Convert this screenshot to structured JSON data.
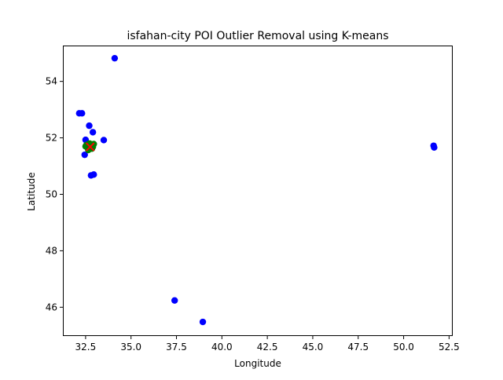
{
  "chart_data": {
    "type": "scatter",
    "title": "isfahan-city POI Outlier Removal using K-means",
    "xlabel": "Longitude",
    "ylabel": "Latitude",
    "xlim": [
      31.25,
      52.7
    ],
    "ylim": [
      44.98,
      55.27
    ],
    "x_ticks": [
      "32.5",
      "35.0",
      "37.5",
      "40.0",
      "42.5",
      "45.0",
      "47.5",
      "50.0",
      "52.5"
    ],
    "y_ticks": [
      "46",
      "48",
      "50",
      "52",
      "54"
    ],
    "grid": false,
    "colors": {
      "blue": "#0000ff",
      "green": "#008000",
      "red": "#ff0000",
      "frame": "#000000"
    },
    "series": [
      {
        "marker": "circle",
        "color": "blue",
        "points": [
          [
            34.1,
            54.82
          ],
          [
            32.15,
            52.87
          ],
          [
            32.3,
            52.87
          ],
          [
            32.7,
            52.43
          ],
          [
            32.9,
            52.2
          ],
          [
            33.5,
            51.92
          ],
          [
            32.5,
            51.93
          ],
          [
            32.45,
            51.4
          ],
          [
            32.8,
            50.67
          ],
          [
            32.95,
            50.7
          ],
          [
            37.4,
            46.24
          ],
          [
            38.95,
            45.48
          ],
          [
            51.65,
            51.72
          ],
          [
            51.68,
            51.66
          ]
        ]
      },
      {
        "marker": "circle",
        "color": "green",
        "points": [
          [
            32.55,
            51.75
          ],
          [
            32.75,
            51.78
          ],
          [
            32.6,
            51.66
          ],
          [
            32.85,
            51.62
          ],
          [
            32.5,
            51.7
          ],
          [
            32.95,
            51.78
          ],
          [
            32.65,
            51.57
          ],
          [
            32.8,
            51.7
          ],
          [
            32.7,
            51.62
          ],
          [
            32.62,
            51.72
          ],
          [
            32.9,
            51.68
          ],
          [
            32.72,
            51.8
          ]
        ]
      },
      {
        "marker": "x",
        "color": "red",
        "points": [
          [
            32.75,
            51.68
          ]
        ]
      }
    ]
  }
}
